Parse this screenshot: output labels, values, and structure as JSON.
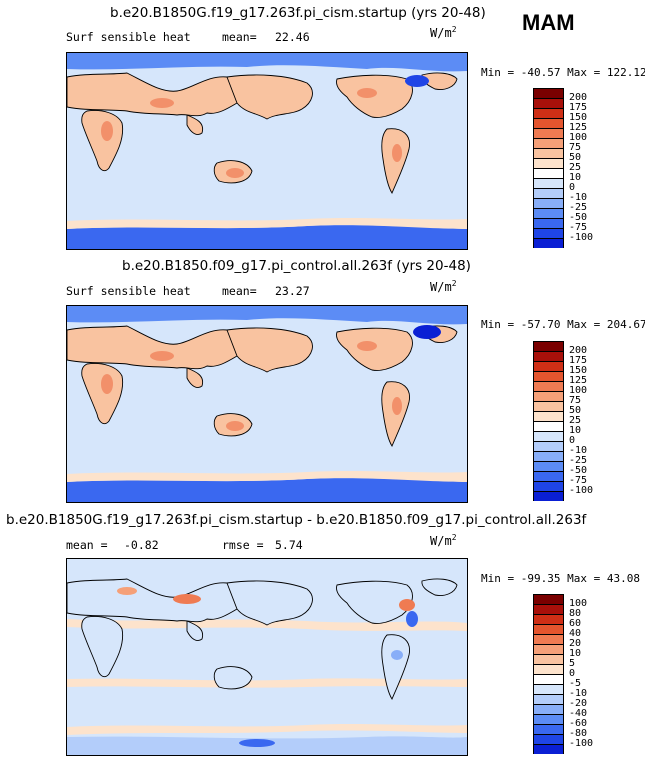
{
  "season_label": "MAM",
  "colorscale": [
    "#00007f",
    "#0a1fd4",
    "#1f45e6",
    "#3a68f0",
    "#5c8cf5",
    "#88aef8",
    "#b3cdfa",
    "#d6e6fb",
    "#ffffff",
    "#fde3cc",
    "#f9c3a0",
    "#f5a078",
    "#ef7b52",
    "#e4552e",
    "#cf2f16",
    "#a8100a",
    "#7a0000"
  ],
  "panels": [
    {
      "title": "b.e20.B1850G.f19_g17.263f.pi_cism.startup (yrs 20-48)",
      "field": "Surf sensible heat",
      "stat1_label": "mean=",
      "stat1_value": "22.46",
      "stat2_label": "",
      "stat2_value": "",
      "unit": "W/m",
      "unit_exp": "2",
      "min_label": "Min =",
      "min_value": "-40.57",
      "max_label": "Max =",
      "max_value": "122.12",
      "colorbar_levels": [
        "200",
        "175",
        "150",
        "125",
        "100",
        "75",
        "50",
        "25",
        "10",
        "0",
        "-10",
        "-25",
        "-50",
        "-75",
        "-100"
      ]
    },
    {
      "title": "b.e20.B1850.f09_g17.pi_control.all.263f (yrs 20-48)",
      "field": "Surf sensible heat",
      "stat1_label": "mean=",
      "stat1_value": "23.27",
      "stat2_label": "",
      "stat2_value": "",
      "unit": "W/m",
      "unit_exp": "2",
      "min_label": "Min =",
      "min_value": "-57.70",
      "max_label": "Max =",
      "max_value": "204.67",
      "colorbar_levels": [
        "200",
        "175",
        "150",
        "125",
        "100",
        "75",
        "50",
        "25",
        "10",
        "0",
        "-10",
        "-25",
        "-50",
        "-75",
        "-100"
      ]
    },
    {
      "title": "b.e20.B1850G.f19_g17.263f.pi_cism.startup - b.e20.B1850.f09_g17.pi_control.all.263f",
      "field": "",
      "stat1_label": "mean =",
      "stat1_value": "-0.82",
      "stat2_label": "rmse =",
      "stat2_value": "5.74",
      "unit": "W/m",
      "unit_exp": "2",
      "min_label": "Min =",
      "min_value": "-99.35",
      "max_label": "Max =",
      "max_value": "43.08",
      "colorbar_levels": [
        "100",
        "80",
        "60",
        "40",
        "20",
        "10",
        "5",
        "0",
        "-5",
        "-10",
        "-20",
        "-40",
        "-60",
        "-80",
        "-100"
      ]
    }
  ]
}
